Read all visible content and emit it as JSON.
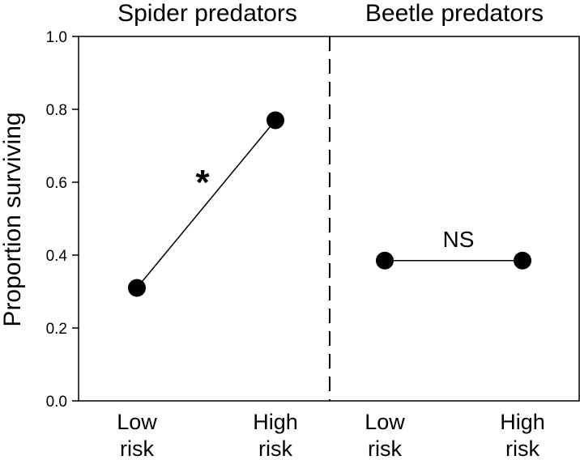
{
  "chart_data": {
    "type": "line",
    "ylabel": "Proportion surviving",
    "ylim": [
      0,
      1.0
    ],
    "yticks": [
      "0.0",
      "0.2",
      "0.4",
      "0.6",
      "0.8",
      "1.0"
    ],
    "panels": [
      {
        "title": "Spider predators",
        "categories": [
          {
            "line1": "Low",
            "line2": "risk"
          },
          {
            "line1": "High",
            "line2": "risk"
          }
        ],
        "values": [
          0.31,
          0.77
        ],
        "annotation": "*"
      },
      {
        "title": "Beetle predators",
        "categories": [
          {
            "line1": "Low",
            "line2": "risk"
          },
          {
            "line1": "High",
            "line2": "risk"
          }
        ],
        "values": [
          0.385,
          0.385
        ],
        "annotation": "NS"
      }
    ],
    "colors": {
      "marker": "#000000",
      "line": "#000000",
      "axis": "#000000"
    }
  }
}
